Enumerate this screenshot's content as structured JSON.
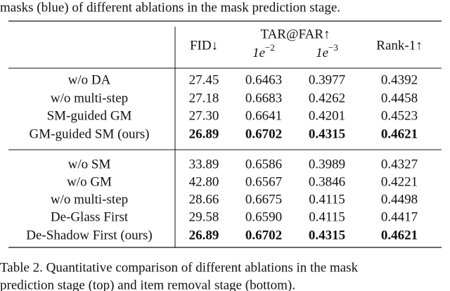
{
  "intro_text": "masks (blue) of different ablations in the mask prediction stage.",
  "table": {
    "header": {
      "fid": "FID↓",
      "tar_far": "TAR@FAR↑",
      "far_levels": [
        {
          "base": "1e",
          "exp": "−2"
        },
        {
          "base": "1e",
          "exp": "−3"
        }
      ],
      "rank1": "Rank-1↑"
    },
    "groups": [
      {
        "rows": [
          [
            "w/o DA",
            "27.45",
            "0.6463",
            "0.3977",
            "0.4392"
          ],
          [
            "w/o multi-step",
            "27.18",
            "0.6683",
            "0.4262",
            "0.4458"
          ],
          [
            "SM-guided GM",
            "27.30",
            "0.6641",
            "0.4201",
            "0.4523"
          ],
          [
            "GM-guided SM (ours)",
            "26.89",
            "0.6702",
            "0.4315",
            "0.4621"
          ]
        ],
        "bold_row": 3
      },
      {
        "rows": [
          [
            "w/o SM",
            "33.89",
            "0.6586",
            "0.3989",
            "0.4327"
          ],
          [
            "w/o GM",
            "42.80",
            "0.6567",
            "0.3846",
            "0.4221"
          ],
          [
            "w/o multi-step",
            "28.66",
            "0.6675",
            "0.4115",
            "0.4498"
          ],
          [
            "De-Glass First",
            "29.58",
            "0.6590",
            "0.4115",
            "0.4417"
          ],
          [
            "De-Shadow First (ours)",
            "26.89",
            "0.6702",
            "0.4315",
            "0.4621"
          ]
        ],
        "bold_row": 4
      }
    ]
  },
  "caption": [
    "Table 2. Quantitative comparison of different ablations in the mask",
    "prediction stage (top) and item removal stage (bottom)."
  ]
}
